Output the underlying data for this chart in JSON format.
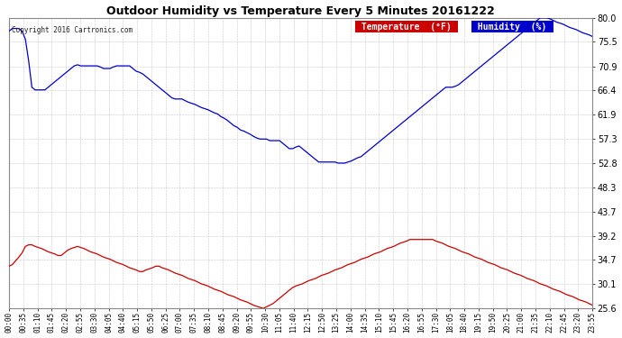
{
  "title": "Outdoor Humidity vs Temperature Every 5 Minutes 20161222",
  "copyright": "Copyright 2016 Cartronics.com",
  "bg_color": "#ffffff",
  "plot_bg_color": "#ffffff",
  "grid_color": "#c8c8c8",
  "temp_color": "#cc0000",
  "humidity_color": "#0000cc",
  "ylim": [
    25.6,
    80.0
  ],
  "yticks": [
    25.6,
    30.1,
    34.7,
    39.2,
    43.7,
    48.3,
    52.8,
    57.3,
    61.9,
    66.4,
    70.9,
    75.5,
    80.0
  ],
  "legend_temp_bg": "#cc0000",
  "legend_hum_bg": "#0000cc",
  "legend_temp_label": "Temperature  (°F)",
  "legend_hum_label": "Humidity  (%)",
  "humidity_data": [
    77.5,
    78.0,
    78.0,
    78.0,
    77.5,
    76.0,
    72.0,
    67.0,
    66.5,
    66.5,
    66.5,
    66.5,
    67.0,
    67.5,
    68.0,
    68.5,
    69.0,
    69.5,
    70.0,
    70.5,
    71.0,
    71.2,
    71.0,
    71.0,
    71.0,
    71.0,
    71.0,
    71.0,
    70.8,
    70.5,
    70.5,
    70.5,
    70.8,
    71.0,
    71.0,
    71.0,
    71.0,
    71.0,
    70.5,
    70.0,
    69.8,
    69.5,
    69.0,
    68.5,
    68.0,
    67.5,
    67.0,
    66.5,
    66.0,
    65.5,
    65.0,
    64.8,
    64.8,
    64.8,
    64.5,
    64.2,
    64.0,
    63.8,
    63.5,
    63.2,
    63.0,
    62.8,
    62.5,
    62.2,
    62.0,
    61.5,
    61.2,
    60.8,
    60.3,
    59.8,
    59.5,
    59.0,
    58.8,
    58.5,
    58.2,
    57.8,
    57.5,
    57.3,
    57.3,
    57.3,
    57.0,
    57.0,
    57.0,
    57.0,
    56.5,
    56.0,
    55.5,
    55.5,
    55.8,
    56.0,
    55.5,
    55.0,
    54.5,
    54.0,
    53.5,
    53.0,
    53.0,
    53.0,
    53.0,
    53.0,
    53.0,
    52.8,
    52.8,
    52.8,
    53.0,
    53.2,
    53.5,
    53.8,
    54.0,
    54.5,
    55.0,
    55.5,
    56.0,
    56.5,
    57.0,
    57.5,
    58.0,
    58.5,
    59.0,
    59.5,
    60.0,
    60.5,
    61.0,
    61.5,
    62.0,
    62.5,
    63.0,
    63.5,
    64.0,
    64.5,
    65.0,
    65.5,
    66.0,
    66.5,
    67.0,
    67.0,
    67.0,
    67.2,
    67.5,
    68.0,
    68.5,
    69.0,
    69.5,
    70.0,
    70.5,
    71.0,
    71.5,
    72.0,
    72.5,
    73.0,
    73.5,
    74.0,
    74.5,
    75.0,
    75.5,
    76.0,
    76.5,
    77.0,
    77.5,
    78.0,
    78.5,
    79.0,
    79.5,
    80.0,
    80.0,
    80.0,
    79.8,
    79.5,
    79.2,
    79.0,
    78.8,
    78.5,
    78.2,
    78.0,
    77.8,
    77.5,
    77.2,
    77.0,
    76.8,
    76.5
  ],
  "temp_data": [
    33.5,
    33.8,
    34.5,
    35.2,
    36.0,
    37.2,
    37.5,
    37.5,
    37.2,
    37.0,
    36.8,
    36.5,
    36.2,
    36.0,
    35.8,
    35.5,
    35.5,
    36.0,
    36.5,
    36.8,
    37.0,
    37.2,
    37.0,
    36.8,
    36.5,
    36.2,
    36.0,
    35.8,
    35.5,
    35.2,
    35.0,
    34.8,
    34.5,
    34.2,
    34.0,
    33.8,
    33.5,
    33.2,
    33.0,
    32.8,
    32.5,
    32.5,
    32.8,
    33.0,
    33.2,
    33.5,
    33.5,
    33.2,
    33.0,
    32.8,
    32.5,
    32.2,
    32.0,
    31.8,
    31.5,
    31.2,
    31.0,
    30.8,
    30.5,
    30.2,
    30.0,
    29.8,
    29.5,
    29.2,
    29.0,
    28.8,
    28.5,
    28.2,
    28.0,
    27.8,
    27.5,
    27.2,
    27.0,
    26.8,
    26.5,
    26.2,
    26.0,
    25.8,
    25.6,
    25.9,
    26.2,
    26.5,
    27.0,
    27.5,
    28.0,
    28.5,
    29.0,
    29.5,
    29.8,
    30.0,
    30.2,
    30.5,
    30.8,
    31.0,
    31.2,
    31.5,
    31.8,
    32.0,
    32.2,
    32.5,
    32.8,
    33.0,
    33.2,
    33.5,
    33.8,
    34.0,
    34.2,
    34.5,
    34.8,
    35.0,
    35.2,
    35.5,
    35.8,
    36.0,
    36.2,
    36.5,
    36.8,
    37.0,
    37.2,
    37.5,
    37.8,
    38.0,
    38.2,
    38.5,
    38.5,
    38.5,
    38.5,
    38.5,
    38.5,
    38.5,
    38.5,
    38.2,
    38.0,
    37.8,
    37.5,
    37.2,
    37.0,
    36.8,
    36.5,
    36.2,
    36.0,
    35.8,
    35.5,
    35.2,
    35.0,
    34.8,
    34.5,
    34.2,
    34.0,
    33.8,
    33.5,
    33.2,
    33.0,
    32.8,
    32.5,
    32.2,
    32.0,
    31.8,
    31.5,
    31.2,
    31.0,
    30.8,
    30.5,
    30.2,
    30.0,
    29.8,
    29.5,
    29.2,
    29.0,
    28.8,
    28.5,
    28.2,
    28.0,
    27.8,
    27.5,
    27.2,
    27.0,
    26.8,
    26.5,
    26.2
  ],
  "x_tick_labels": [
    "00:00",
    "00:35",
    "01:10",
    "01:45",
    "02:20",
    "02:55",
    "03:30",
    "04:05",
    "04:40",
    "05:15",
    "05:50",
    "06:25",
    "07:00",
    "07:35",
    "08:10",
    "08:45",
    "09:20",
    "09:55",
    "10:30",
    "11:05",
    "11:40",
    "12:15",
    "12:50",
    "13:25",
    "14:00",
    "14:35",
    "15:10",
    "15:45",
    "16:20",
    "16:55",
    "17:30",
    "18:05",
    "18:40",
    "19:15",
    "19:50",
    "20:25",
    "21:00",
    "21:35",
    "22:10",
    "22:45",
    "23:20",
    "23:55"
  ]
}
